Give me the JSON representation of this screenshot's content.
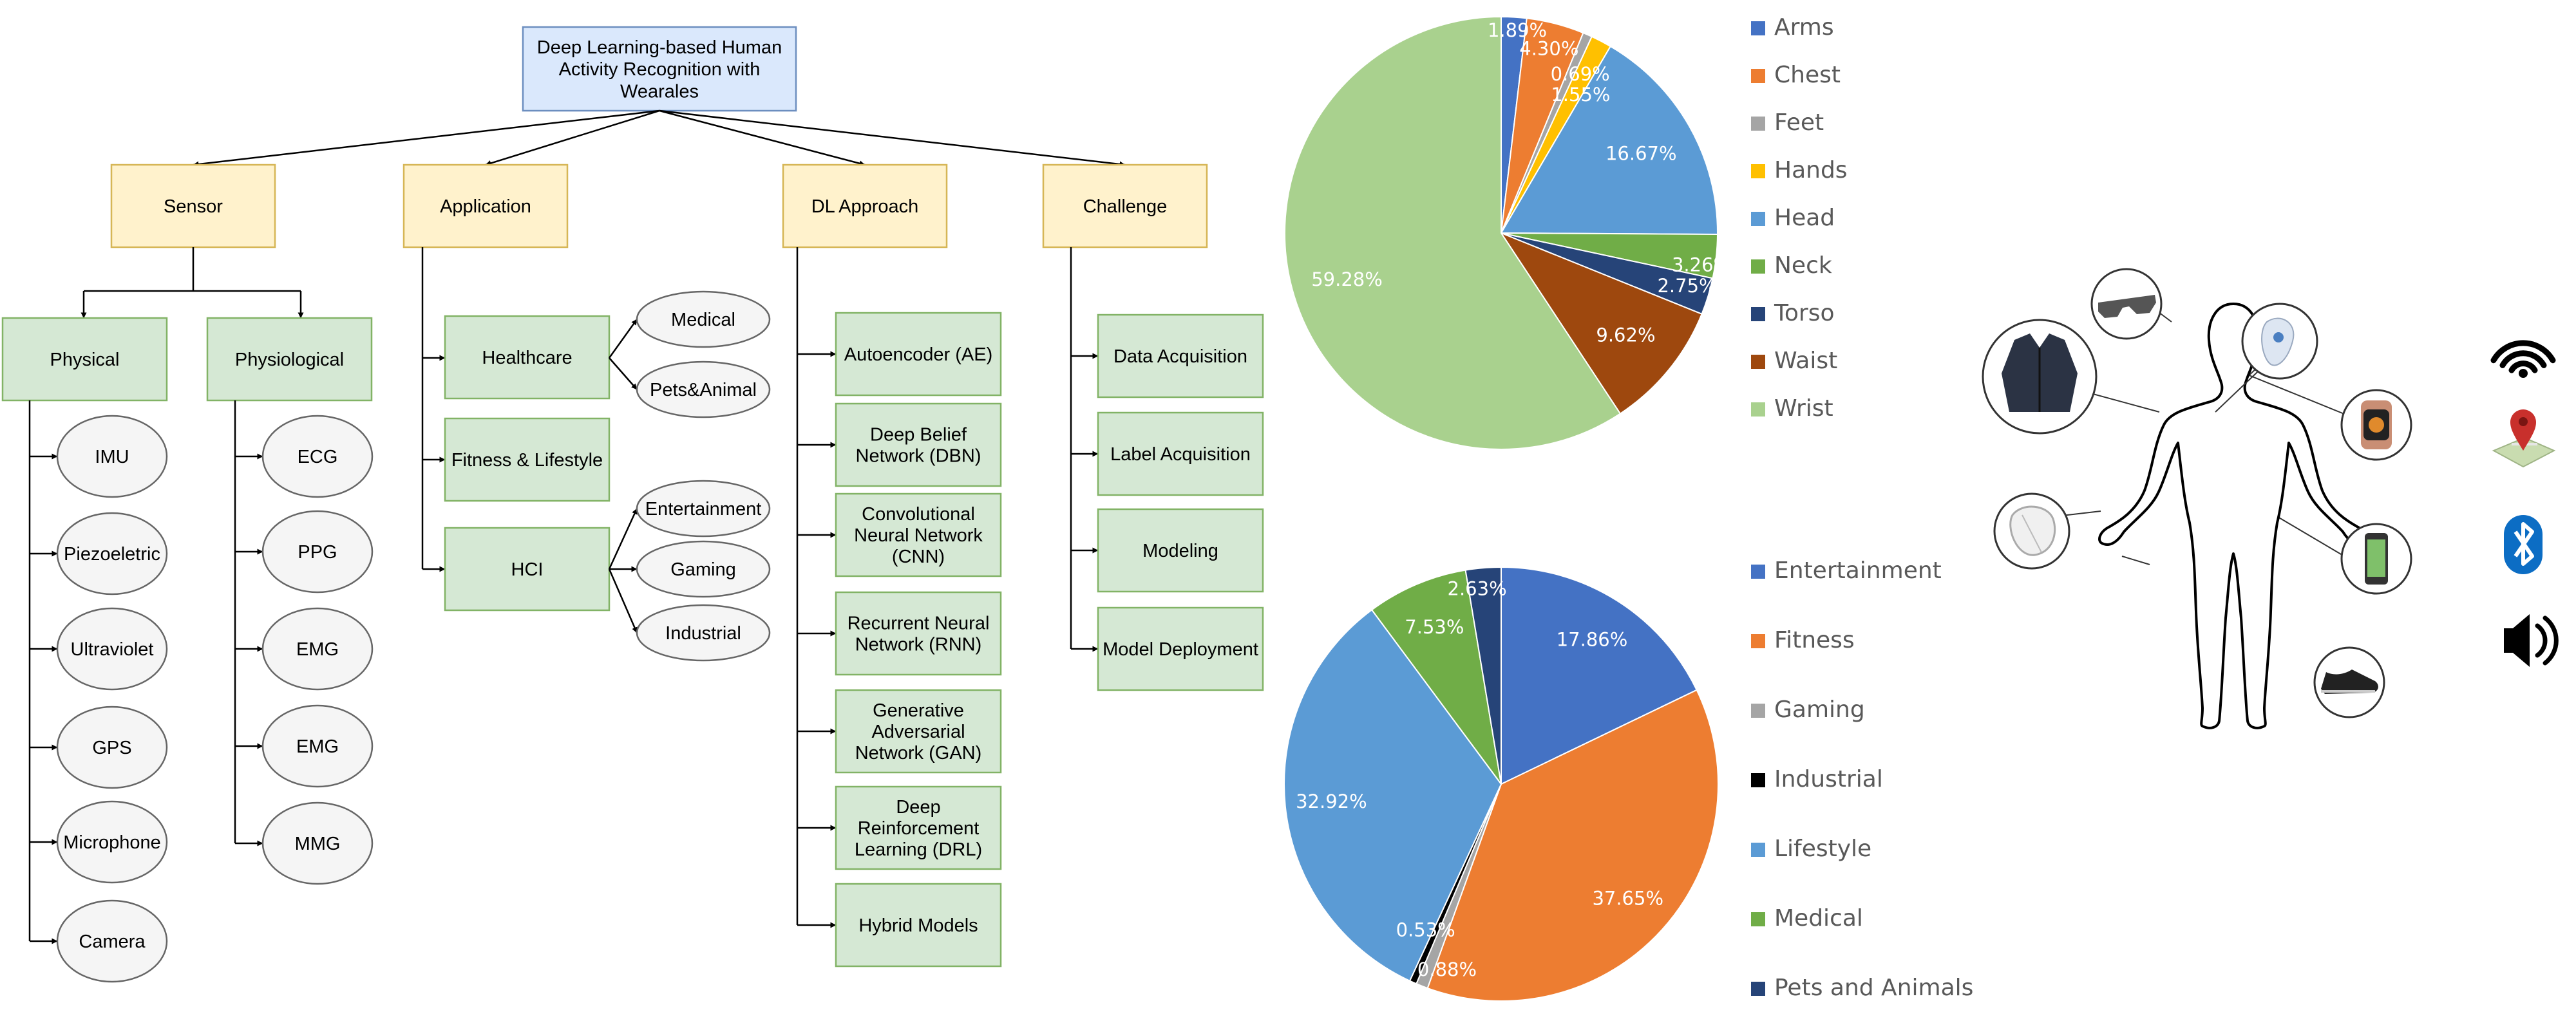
{
  "diagram": {
    "root": "Deep Learning-based Human Activity Recognition with Wearales",
    "branches": {
      "sensor": {
        "label": "Sensor",
        "physical": {
          "label": "Physical",
          "items": [
            "IMU",
            "Piezoeletric",
            "Ultraviolet",
            "GPS",
            "Microphone",
            "Camera"
          ]
        },
        "physiological": {
          "label": "Physiological",
          "items": [
            "ECG",
            "PPG",
            "EMG",
            "EMG",
            "MMG"
          ]
        }
      },
      "application": {
        "label": "Application",
        "items": [
          {
            "label": "Healthcare",
            "children": [
              "Medical",
              "Pets&Animal"
            ]
          },
          {
            "label": "Fitness & Lifestyle",
            "children": []
          },
          {
            "label": "HCI",
            "children": [
              "Entertainment",
              "Gaming",
              "Industrial"
            ]
          }
        ]
      },
      "dl": {
        "label": "DL Approach",
        "items": [
          "Autoencoder (AE)",
          "Deep Belief Network (DBN)",
          "Convolutional Neural Network (CNN)",
          "Recurrent Neural Network (RNN)",
          "Generative Adversarial Network (GAN)",
          "Deep Reinforcement Learning (DRL)",
          "Hybrid Models"
        ]
      },
      "challenge": {
        "label": "Challenge",
        "items": [
          "Data Acquisition",
          "Label Acquisition",
          "Modeling",
          "Model Deployment"
        ]
      }
    },
    "colors": {
      "root_fill": "#dae8fc",
      "root_stroke": "#6c8ebf",
      "branch_fill": "#fff2cc",
      "branch_stroke": "#d6b656",
      "leaf_fill": "#d5e8d4",
      "leaf_stroke": "#82b366",
      "ellipse_fill": "#f5f5f5",
      "ellipse_stroke": "#666666"
    }
  },
  "chart_data": [
    {
      "type": "pie",
      "title": "",
      "legend_position": "right",
      "slices": [
        {
          "label": "Arms",
          "value": 1.89,
          "text": "1.89%",
          "color": "#4472c4"
        },
        {
          "label": "Chest",
          "value": 4.3,
          "text": "4.30%",
          "color": "#ed7d31"
        },
        {
          "label": "Feet",
          "value": 0.69,
          "text": "0.69%",
          "color": "#a5a5a5"
        },
        {
          "label": "Hands",
          "value": 1.55,
          "text": "1.55%",
          "color": "#ffc000"
        },
        {
          "label": "Head",
          "value": 16.67,
          "text": "16.67%",
          "color": "#5b9bd5"
        },
        {
          "label": "Neck",
          "value": 3.26,
          "text": "3.26%",
          "color": "#70ad47"
        },
        {
          "label": "Torso",
          "value": 2.75,
          "text": "2.75%",
          "color": "#264478"
        },
        {
          "label": "Waist",
          "value": 9.62,
          "text": "9.62%",
          "color": "#9e480e"
        },
        {
          "label": "Wrist",
          "value": 59.28,
          "text": "59.28%",
          "color": "#a9d18e"
        }
      ]
    },
    {
      "type": "pie",
      "title": "",
      "legend_position": "right",
      "slices": [
        {
          "label": "Entertainment",
          "value": 17.86,
          "text": "17.86%",
          "color": "#4472c4"
        },
        {
          "label": "Fitness",
          "value": 37.65,
          "text": "37.65%",
          "color": "#ed7d31"
        },
        {
          "label": "Gaming",
          "value": 0.88,
          "text": "0.88%",
          "color": "#a5a5a5"
        },
        {
          "label": "Industrial",
          "value": 0.53,
          "text": "0.53%",
          "color": "#000000"
        },
        {
          "label": "Lifestyle",
          "value": 32.92,
          "text": "32.92%",
          "color": "#5b9bd5"
        },
        {
          "label": "Medical",
          "value": 7.53,
          "text": "7.53%",
          "color": "#70ad47"
        },
        {
          "label": "Pets and Animals",
          "value": 2.63,
          "text": "2.63%",
          "color": "#264478"
        }
      ]
    }
  ],
  "illustration": {
    "body": "human-body-outline",
    "devices": [
      "smart-glasses",
      "jacket",
      "skin-patch-sensor",
      "smartwatch",
      "chest-strap-sensor",
      "smartphone",
      "sneaker"
    ],
    "connectivity_icons": [
      "wifi-icon",
      "map-pin-icon",
      "bluetooth-icon",
      "speaker-icon"
    ]
  }
}
